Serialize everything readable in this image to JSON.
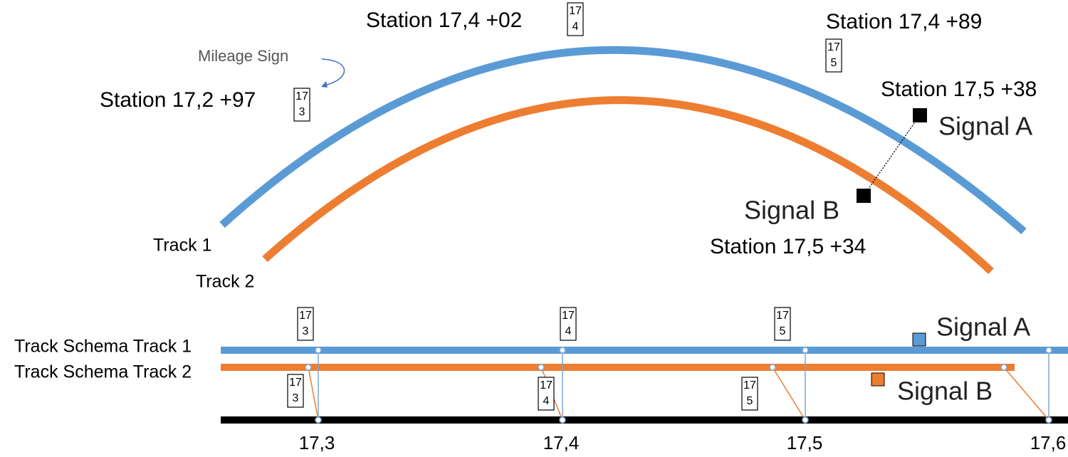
{
  "curve_view": {
    "mileage_note": "Mileage Sign",
    "stations": [
      {
        "label": "Station 17,2 +97",
        "sign": [
          "17",
          "3"
        ]
      },
      {
        "label": "Station 17,4 +02",
        "sign": [
          "17",
          "4"
        ]
      },
      {
        "label": "Station 17,4 +89",
        "sign": [
          "17",
          "5"
        ]
      }
    ],
    "signals": [
      {
        "name": "Signal A",
        "station": "Station 17,5 +38"
      },
      {
        "name": "Signal B",
        "station": "Station 17,5 +34"
      }
    ],
    "tracks": [
      "Track 1",
      "Track 2"
    ]
  },
  "schema_view": {
    "tracks": [
      "Track Schema Track 1",
      "Track Schema Track 2"
    ],
    "signals": [
      "Signal A",
      "Signal B"
    ],
    "track1_signs": [
      [
        "17",
        "3"
      ],
      [
        "17",
        "4"
      ],
      [
        "17",
        "5"
      ]
    ],
    "track2_signs": [
      [
        "17",
        "3"
      ],
      [
        "17",
        "4"
      ],
      [
        "17",
        "5"
      ]
    ],
    "axis_labels": [
      "17,3",
      "17,4",
      "17,5",
      "17,6"
    ]
  }
}
